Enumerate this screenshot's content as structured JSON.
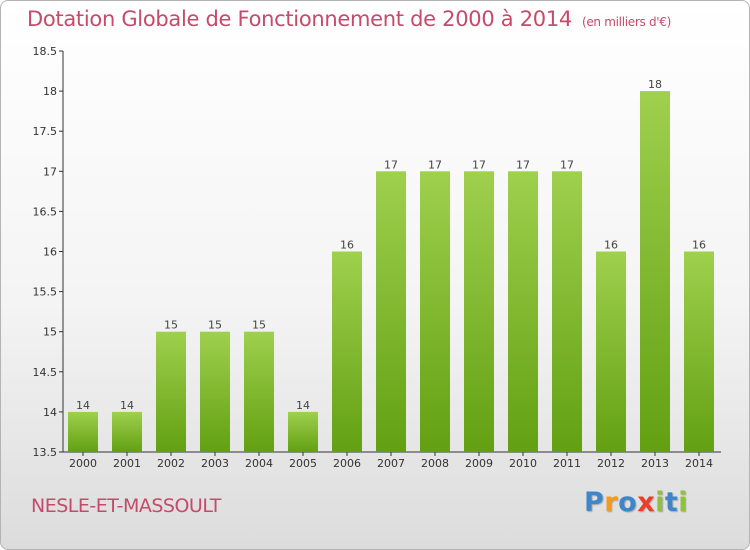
{
  "header": {
    "title": "Dotation Globale de Fonctionnement de 2000 à 2014",
    "unit": "(en milliers d'€)"
  },
  "footer": {
    "commune": "NESLE-ET-MASSOULT",
    "brand_letters": [
      "P",
      "r",
      "o",
      "x",
      "i",
      "t",
      "i"
    ]
  },
  "colors": {
    "title": "#c64a6a",
    "bar_light": "#9fd04e",
    "bar_dark": "#62a012",
    "axis": "#333333"
  },
  "chart_data": {
    "type": "bar",
    "categories": [
      "2000",
      "2001",
      "2002",
      "2003",
      "2004",
      "2005",
      "2006",
      "2007",
      "2008",
      "2009",
      "2010",
      "2011",
      "2012",
      "2013",
      "2014"
    ],
    "values": [
      14,
      14,
      15,
      15,
      15,
      14,
      16,
      17,
      17,
      17,
      17,
      17,
      16,
      18,
      16
    ],
    "data_labels": [
      "14",
      "14",
      "15",
      "15",
      "15",
      "14",
      "16",
      "17",
      "17",
      "17",
      "17",
      "17",
      "16",
      "18",
      "16"
    ],
    "ylim": [
      13.5,
      18.5
    ],
    "y_ticks": [
      13.5,
      14,
      14.5,
      15,
      15.5,
      16,
      16.5,
      17,
      17.5,
      18,
      18.5
    ],
    "y_tick_labels": [
      "13.5",
      "14",
      "14.5",
      "15",
      "15.5",
      "16",
      "16.5",
      "17",
      "17.5",
      "18",
      "18.5"
    ],
    "grid": false,
    "legend": "none"
  }
}
